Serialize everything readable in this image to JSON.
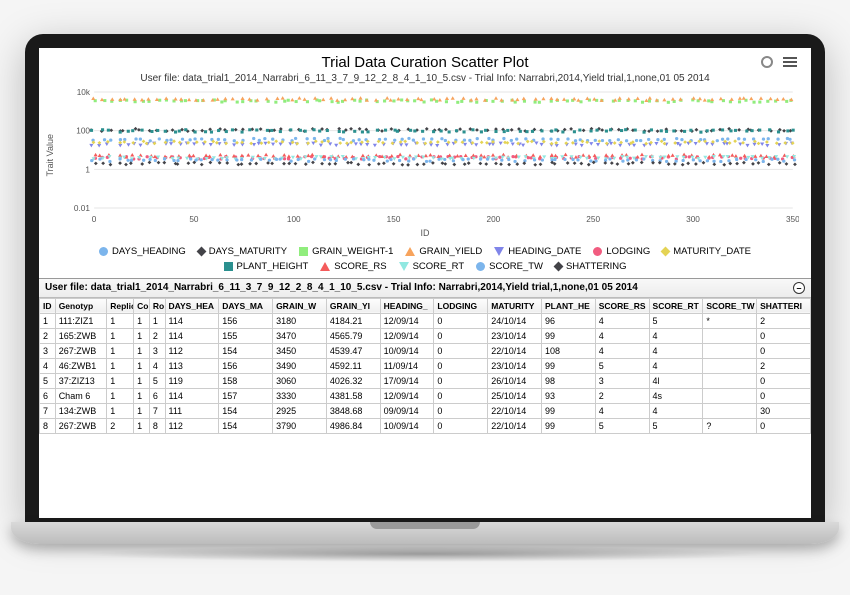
{
  "chart": {
    "title": "Trial Data Curation Scatter Plot",
    "subtitle": "User file: data_trial1_2014_Narrabri_6_11_3_7_9_12_2_8_4_1_10_5.csv - Trial Info: Narrabri,2014,Yield trial,1,none,01 05 2014",
    "type": "scatter",
    "yaxis": {
      "label": "Trait Value",
      "scale": "log",
      "ticks": [
        "0.01",
        "1",
        "100",
        "10k"
      ],
      "tick_values": [
        0.01,
        1,
        100,
        10000
      ]
    },
    "xaxis": {
      "label": "ID",
      "min": 0,
      "max": 350,
      "ticks": [
        0,
        50,
        100,
        150,
        200,
        250,
        300,
        350
      ]
    },
    "background_color": "#ffffff",
    "grid_color": "#e6e6e6",
    "series": [
      {
        "name": "DAYS_HEADING",
        "color": "#7cb5ec",
        "marker": "circle",
        "band": 35
      },
      {
        "name": "DAYS_MATURITY",
        "color": "#434348",
        "marker": "diamond",
        "band": 110
      },
      {
        "name": "GRAIN_WEIGHT-1",
        "color": "#90ed7d",
        "marker": "square",
        "band": 3400
      },
      {
        "name": "GRAIN_YIELD",
        "color": "#f7a35c",
        "marker": "tri-up",
        "band": 4200
      },
      {
        "name": "HEADING_DATE",
        "color": "#8085e9",
        "marker": "tri-down",
        "band": 20
      },
      {
        "name": "LODGING",
        "color": "#f15c80",
        "marker": "circle",
        "band": 4
      },
      {
        "name": "MATURITY_DATE",
        "color": "#e4d354",
        "marker": "diamond",
        "band": 25
      },
      {
        "name": "PLANT_HEIGHT",
        "color": "#2b908f",
        "marker": "square",
        "band": 98
      },
      {
        "name": "SCORE_RS",
        "color": "#f45b5b",
        "marker": "tri-up",
        "band": 5
      },
      {
        "name": "SCORE_RT",
        "color": "#91e8e1",
        "marker": "tri-down",
        "band": 4
      },
      {
        "name": "SCORE_TW",
        "color": "#7cb5ec",
        "marker": "circle",
        "band": 3
      },
      {
        "name": "SHATTERING",
        "color": "#434348",
        "marker": "diamond",
        "band": 2
      }
    ]
  },
  "table": {
    "caption": "User file: data_trial1_2014_Narrabri_6_11_3_7_9_12_2_8_4_1_10_5.csv - Trial Info: Narrabri,2014,Yield trial,1,none,01 05 2014",
    "columns": [
      "ID",
      "Genotyp",
      "Replic",
      "Co",
      "Ro",
      "DAYS_HEA",
      "DAYS_MA",
      "GRAIN_W",
      "GRAIN_YI",
      "HEADING_",
      "LODGING",
      "MATURITY",
      "PLANT_HE",
      "SCORE_RS",
      "SCORE_RT",
      "SCORE_TW",
      "SHATTERI"
    ],
    "rows": [
      [
        "1",
        "111:ZIZ1",
        "1",
        "1",
        "1",
        "114",
        "156",
        "3180",
        "4184.21",
        "12/09/14",
        "0",
        "24/10/14",
        "96",
        "4",
        "5",
        "*",
        "2"
      ],
      [
        "2",
        "165:ZWB",
        "1",
        "1",
        "2",
        "114",
        "155",
        "3470",
        "4565.79",
        "12/09/14",
        "0",
        "23/10/14",
        "99",
        "4",
        "4",
        "",
        "0"
      ],
      [
        "3",
        "267:ZWB",
        "1",
        "1",
        "3",
        "112",
        "154",
        "3450",
        "4539.47",
        "10/09/14",
        "0",
        "22/10/14",
        "108",
        "4",
        "4",
        "",
        "0"
      ],
      [
        "4",
        "46:ZWB1",
        "1",
        "1",
        "4",
        "113",
        "156",
        "3490",
        "4592.11",
        "11/09/14",
        "0",
        "23/10/14",
        "99",
        "5",
        "4",
        "",
        "2"
      ],
      [
        "5",
        "37:ZIZ13",
        "1",
        "1",
        "5",
        "119",
        "158",
        "3060",
        "4026.32",
        "17/09/14",
        "0",
        "26/10/14",
        "98",
        "3",
        "4l",
        "",
        "0"
      ],
      [
        "6",
        "Cham 6",
        "1",
        "1",
        "6",
        "114",
        "157",
        "3330",
        "4381.58",
        "12/09/14",
        "0",
        "25/10/14",
        "93",
        "2",
        "4s",
        "",
        "0"
      ],
      [
        "7",
        "134:ZWB",
        "1",
        "1",
        "7",
        "111",
        "154",
        "2925",
        "3848.68",
        "09/09/14",
        "0",
        "22/10/14",
        "99",
        "4",
        "4",
        "",
        "30"
      ],
      [
        "8",
        "267:ZWB",
        "2",
        "1",
        "8",
        "112",
        "154",
        "3790",
        "4986.84",
        "10/09/14",
        "0",
        "22/10/14",
        "99",
        "5",
        "5",
        "?",
        "0"
      ]
    ]
  }
}
